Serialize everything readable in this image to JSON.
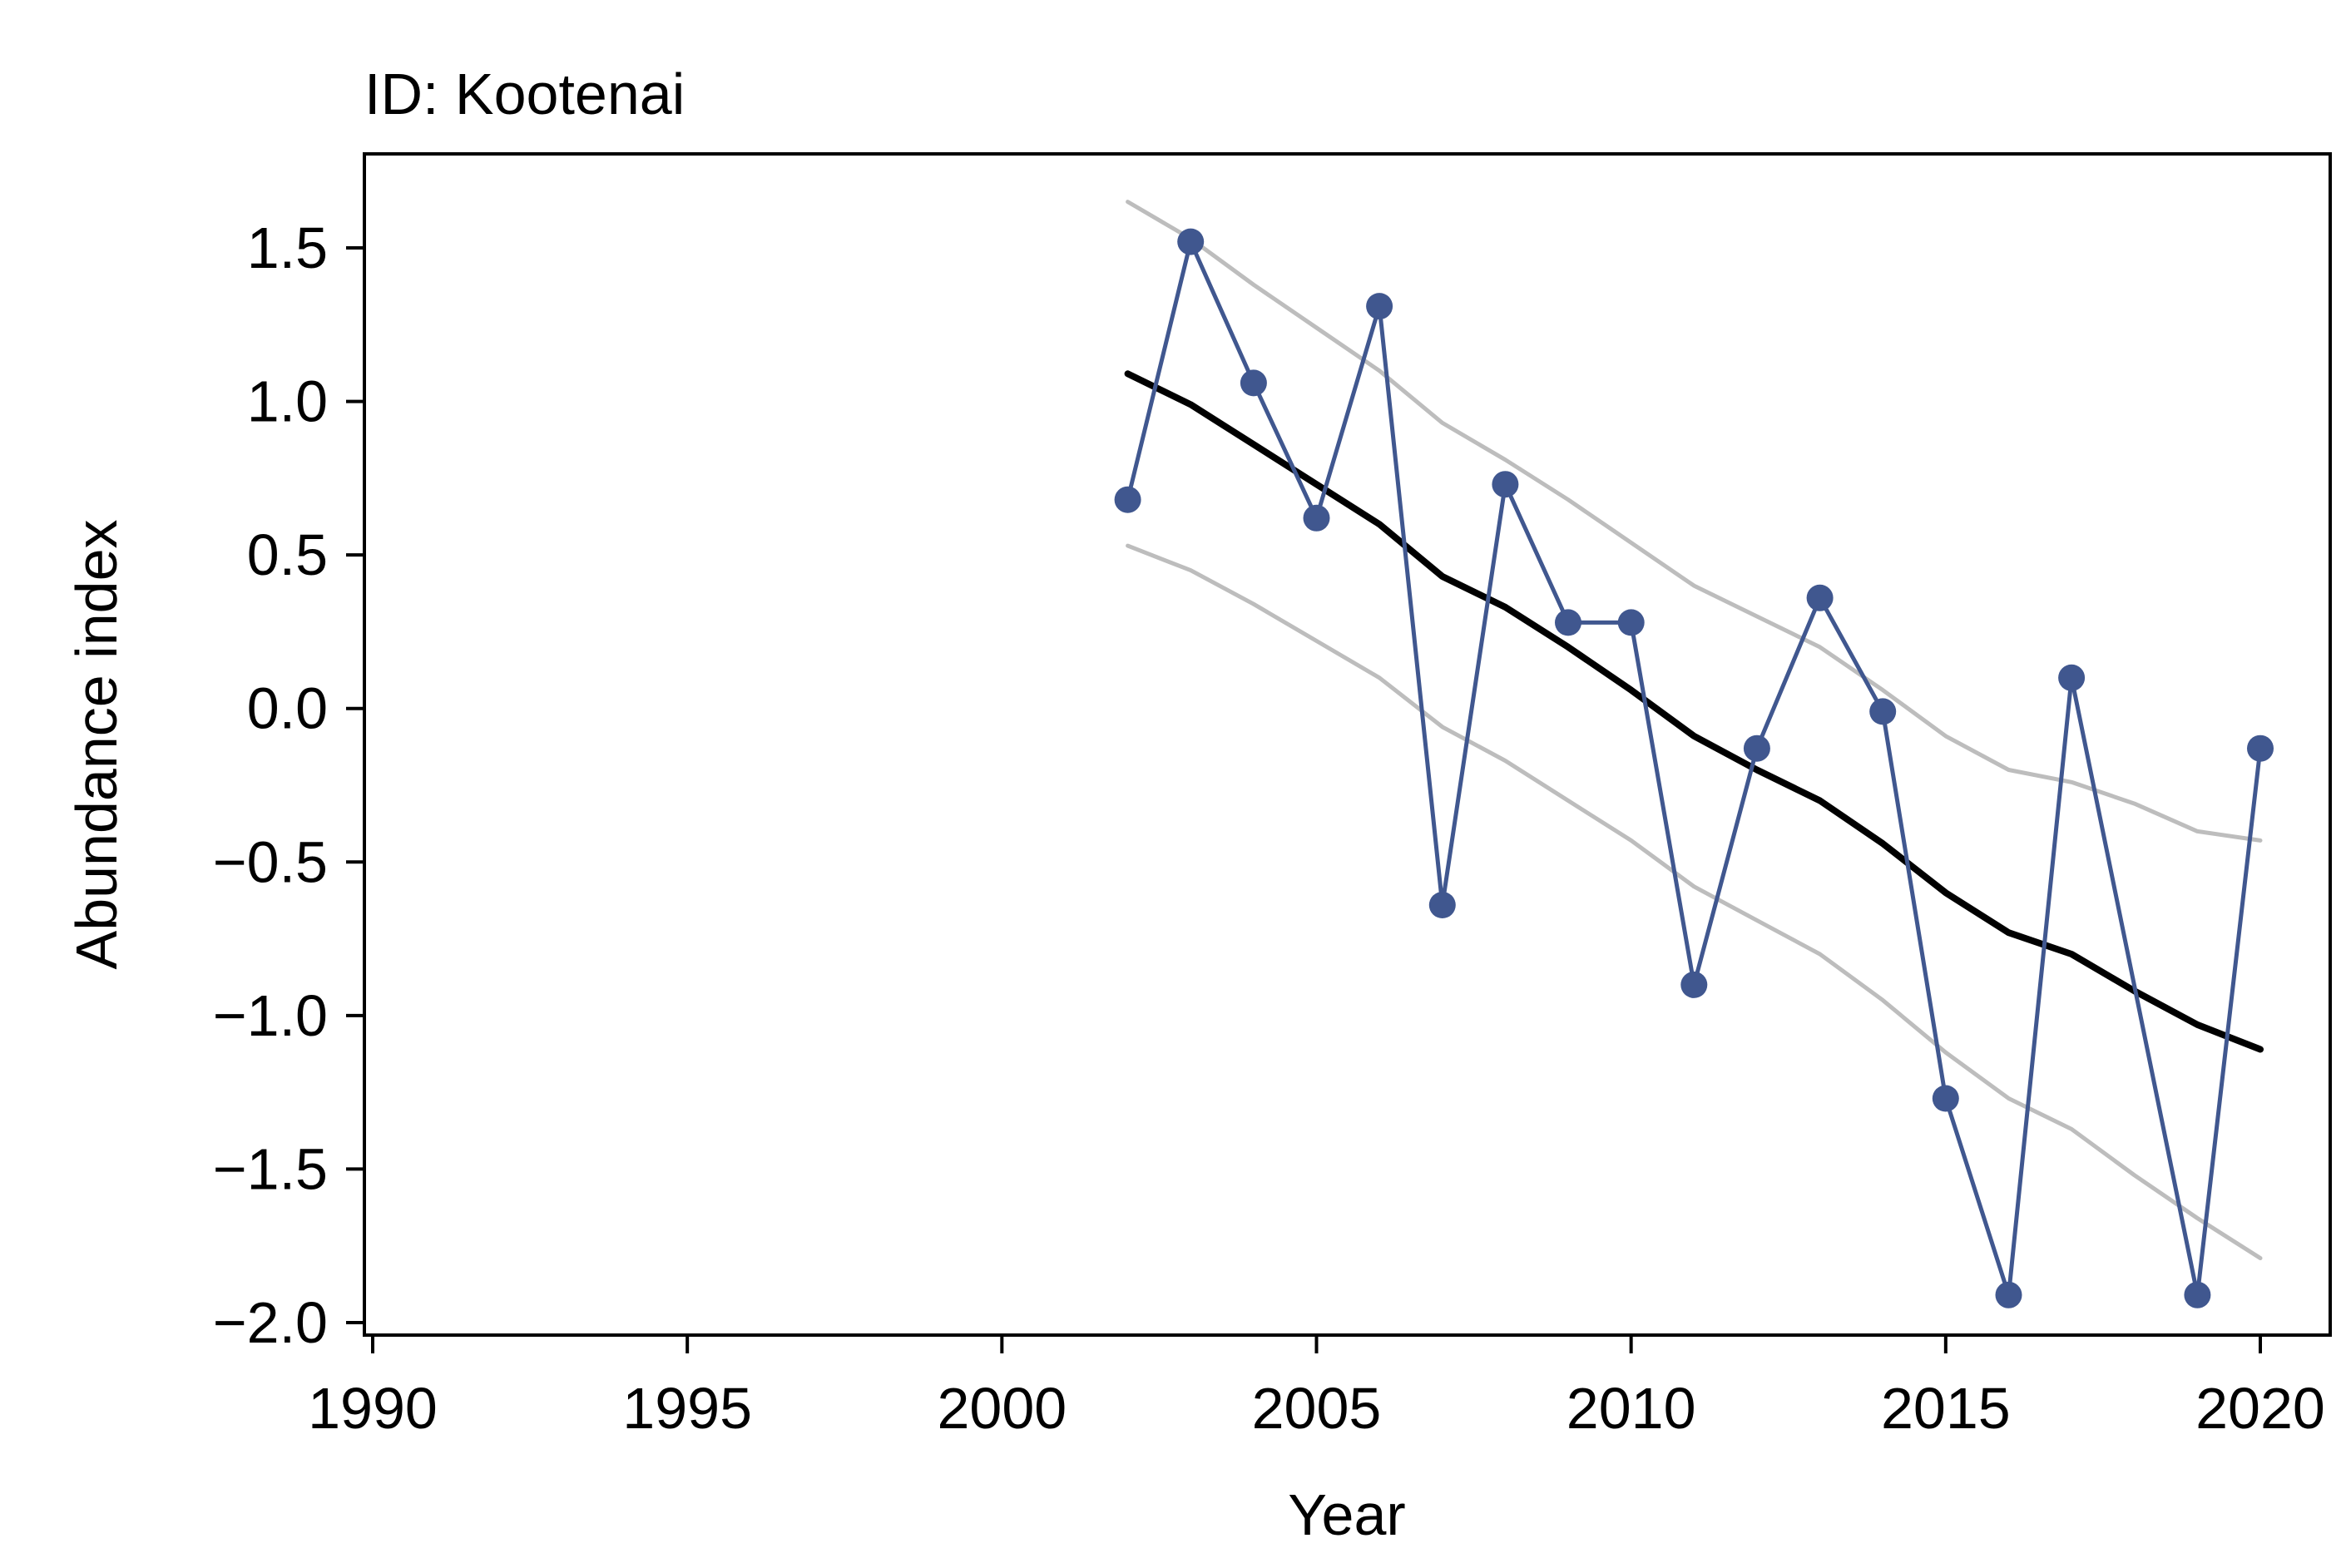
{
  "chart_data": {
    "type": "line",
    "title": "ID: Kootenai",
    "xlabel": "Year",
    "ylabel": "Abundance index",
    "xlim": [
      1990,
      2020
    ],
    "ylim": [
      -2.0,
      1.75
    ],
    "x_ticks": [
      1990,
      1995,
      2000,
      2005,
      2010,
      2015,
      2020
    ],
    "x_tick_labels": [
      "1990",
      "1995",
      "2000",
      "2005",
      "2010",
      "2015",
      "2020"
    ],
    "y_ticks": [
      -2.0,
      -1.5,
      -1.0,
      -0.5,
      0.0,
      0.5,
      1.0,
      1.5
    ],
    "y_tick_labels": [
      "−2.0",
      "−1.5",
      "−1.0",
      "−0.5",
      "0.0",
      "0.5",
      "1.0",
      "1.5"
    ],
    "grid": false,
    "legend": "none",
    "colors": {
      "observed": "#40578f",
      "fit": "#000000",
      "interval": "#bdbdbd",
      "axis": "#000000"
    },
    "series": [
      {
        "role": "observed",
        "style": "line+markers",
        "points": [
          {
            "x": 2002,
            "y": 0.68
          },
          {
            "x": 2003,
            "y": 1.52
          },
          {
            "x": 2004,
            "y": 1.06
          },
          {
            "x": 2005,
            "y": 0.62
          },
          {
            "x": 2006,
            "y": 1.31
          },
          {
            "x": 2007,
            "y": -0.64
          },
          {
            "x": 2008,
            "y": 0.73
          },
          {
            "x": 2009,
            "y": 0.28
          },
          {
            "x": 2010,
            "y": 0.28
          },
          {
            "x": 2011,
            "y": -0.9
          },
          {
            "x": 2012,
            "y": -0.13
          },
          {
            "x": 2013,
            "y": 0.36
          },
          {
            "x": 2014,
            "y": -0.01
          },
          {
            "x": 2015,
            "y": -1.27
          },
          {
            "x": 2016,
            "y": -1.91
          },
          {
            "x": 2017,
            "y": 0.1
          },
          {
            "x": 2019,
            "y": -1.91
          },
          {
            "x": 2020,
            "y": -0.13
          }
        ]
      },
      {
        "role": "fit",
        "style": "line",
        "points": [
          {
            "x": 2002,
            "y": 1.09
          },
          {
            "x": 2003,
            "y": 0.99
          },
          {
            "x": 2004,
            "y": 0.86
          },
          {
            "x": 2005,
            "y": 0.73
          },
          {
            "x": 2006,
            "y": 0.6
          },
          {
            "x": 2007,
            "y": 0.43
          },
          {
            "x": 2008,
            "y": 0.33
          },
          {
            "x": 2009,
            "y": 0.2
          },
          {
            "x": 2010,
            "y": 0.06
          },
          {
            "x": 2011,
            "y": -0.09
          },
          {
            "x": 2012,
            "y": -0.2
          },
          {
            "x": 2013,
            "y": -0.3
          },
          {
            "x": 2014,
            "y": -0.44
          },
          {
            "x": 2015,
            "y": -0.6
          },
          {
            "x": 2016,
            "y": -0.73
          },
          {
            "x": 2017,
            "y": -0.8
          },
          {
            "x": 2018,
            "y": -0.92
          },
          {
            "x": 2019,
            "y": -1.03
          },
          {
            "x": 2020,
            "y": -1.11
          }
        ]
      },
      {
        "role": "upper",
        "style": "line",
        "points": [
          {
            "x": 2002,
            "y": 1.65
          },
          {
            "x": 2003,
            "y": 1.53
          },
          {
            "x": 2004,
            "y": 1.38
          },
          {
            "x": 2005,
            "y": 1.24
          },
          {
            "x": 2006,
            "y": 1.1
          },
          {
            "x": 2007,
            "y": 0.93
          },
          {
            "x": 2008,
            "y": 0.81
          },
          {
            "x": 2009,
            "y": 0.68
          },
          {
            "x": 2010,
            "y": 0.54
          },
          {
            "x": 2011,
            "y": 0.4
          },
          {
            "x": 2012,
            "y": 0.3
          },
          {
            "x": 2013,
            "y": 0.2
          },
          {
            "x": 2014,
            "y": 0.06
          },
          {
            "x": 2015,
            "y": -0.09
          },
          {
            "x": 2016,
            "y": -0.2
          },
          {
            "x": 2017,
            "y": -0.24
          },
          {
            "x": 2018,
            "y": -0.31
          },
          {
            "x": 2019,
            "y": -0.4
          },
          {
            "x": 2020,
            "y": -0.43
          }
        ]
      },
      {
        "role": "lower",
        "style": "line",
        "points": [
          {
            "x": 2002,
            "y": 0.53
          },
          {
            "x": 2003,
            "y": 0.45
          },
          {
            "x": 2004,
            "y": 0.34
          },
          {
            "x": 2005,
            "y": 0.22
          },
          {
            "x": 2006,
            "y": 0.1
          },
          {
            "x": 2007,
            "y": -0.06
          },
          {
            "x": 2008,
            "y": -0.17
          },
          {
            "x": 2009,
            "y": -0.3
          },
          {
            "x": 2010,
            "y": -0.43
          },
          {
            "x": 2011,
            "y": -0.58
          },
          {
            "x": 2012,
            "y": -0.69
          },
          {
            "x": 2013,
            "y": -0.8
          },
          {
            "x": 2014,
            "y": -0.95
          },
          {
            "x": 2015,
            "y": -1.12
          },
          {
            "x": 2016,
            "y": -1.27
          },
          {
            "x": 2017,
            "y": -1.37
          },
          {
            "x": 2018,
            "y": -1.52
          },
          {
            "x": 2019,
            "y": -1.66
          },
          {
            "x": 2020,
            "y": -1.79
          }
        ]
      }
    ]
  }
}
